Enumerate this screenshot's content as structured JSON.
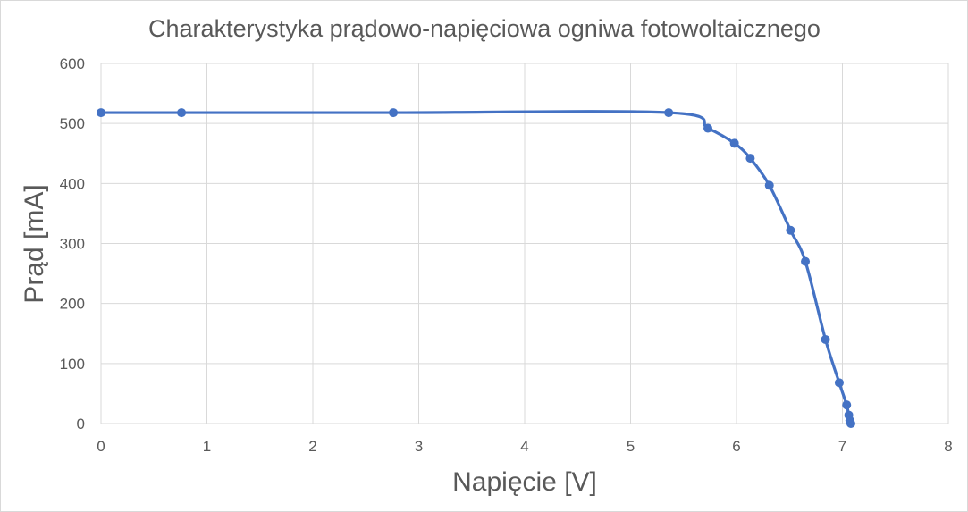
{
  "chart_data": {
    "type": "scatter",
    "title": "Charakterystyka prądowo-napięciowa ogniwa fotowoltaicznego",
    "xlabel": "Napięcie [V]",
    "ylabel": "Prąd [mA]",
    "xlim": [
      0,
      8
    ],
    "ylim": [
      0,
      600
    ],
    "xticks": [
      "0",
      "1",
      "2",
      "3",
      "4",
      "5",
      "6",
      "7",
      "8"
    ],
    "yticks": [
      "0",
      "100",
      "200",
      "300",
      "400",
      "500",
      "600"
    ],
    "grid": true,
    "smooth_line": true,
    "series": [
      {
        "color": "#4472c4",
        "x": [
          0,
          0.76,
          2.76,
          5.36,
          5.73,
          5.98,
          6.13,
          6.31,
          6.51,
          6.65,
          6.84,
          6.97,
          7.04,
          7.06,
          7.07,
          7.08
        ],
        "y": [
          518,
          518,
          518,
          518,
          492,
          467,
          442,
          397,
          322,
          270,
          140,
          68,
          31,
          14,
          5,
          0
        ]
      }
    ]
  }
}
